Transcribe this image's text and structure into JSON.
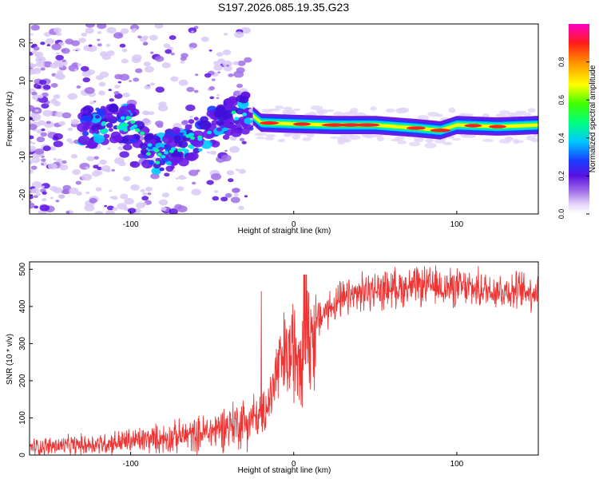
{
  "title": "S197.2026.085.19.35.G23",
  "chart_data": [
    {
      "type": "heatmap",
      "name": "spectrogram",
      "xlabel": "Height of straight line (km)",
      "ylabel": "Frequency (Hz)",
      "xlim": [
        -162,
        150
      ],
      "ylim": [
        -25,
        25
      ],
      "xticks": [
        -100,
        0,
        100
      ],
      "yticks": [
        -20,
        -10,
        0,
        10,
        20
      ],
      "colorbar": {
        "label": "Normalized spectral amplitude",
        "range": [
          0,
          1
        ],
        "ticks": [
          "0.0",
          "0.2",
          "0.4",
          "0.6",
          "0.8"
        ]
      },
      "ridge": {
        "description_points": [
          [
            -125,
            -2
          ],
          [
            -100,
            -1.5
          ],
          [
            -85,
            -10
          ],
          [
            -60,
            -5
          ],
          [
            -40,
            0
          ],
          [
            -28,
            2
          ],
          [
            -20,
            -1
          ],
          [
            0,
            -1.3
          ],
          [
            25,
            -1.6
          ],
          [
            50,
            -1.6
          ],
          [
            75,
            -2.4
          ],
          [
            90,
            -3
          ],
          [
            100,
            -1.6
          ],
          [
            125,
            -2
          ],
          [
            150,
            -1.6
          ]
        ]
      }
    },
    {
      "type": "line",
      "name": "snr",
      "xlabel": "Height of straight line (km)",
      "ylabel": "SNR (10 * v/v)",
      "xlim": [
        -162,
        150
      ],
      "ylim": [
        0,
        520
      ],
      "xticks": [
        -100,
        0,
        100
      ],
      "yticks": [
        0,
        100,
        200,
        300,
        400,
        500
      ],
      "color": "#ee3333",
      "trend": {
        "x": [
          -162,
          -140,
          -120,
          -100,
          -80,
          -60,
          -50,
          -40,
          -30,
          -25,
          -20,
          -15,
          -10,
          -5,
          0,
          5,
          10,
          15,
          20,
          25,
          30,
          40,
          60,
          80,
          100,
          120,
          150
        ],
        "y": [
          22,
          25,
          30,
          38,
          45,
          55,
          65,
          80,
          90,
          95,
          110,
          145,
          230,
          260,
          280,
          300,
          320,
          360,
          390,
          405,
          415,
          435,
          450,
          455,
          450,
          445,
          440
        ]
      }
    }
  ]
}
